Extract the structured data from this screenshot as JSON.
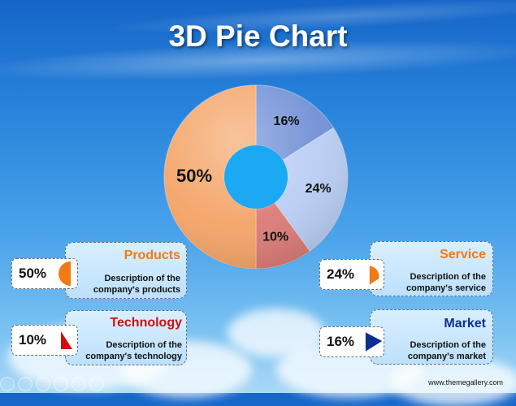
{
  "title": "3D Pie Chart",
  "footer": "www.themegallery.com",
  "chart_data": {
    "type": "pie",
    "title": "3D Pie Chart",
    "donut": true,
    "slices": [
      {
        "name": "Market",
        "value": 16,
        "label": "16%",
        "color": "#6f8fd6"
      },
      {
        "name": "Service",
        "value": 24,
        "label": "24%",
        "color": "#b9cdf4"
      },
      {
        "name": "Technology",
        "value": 10,
        "label": "10%",
        "color": "#db7b76"
      },
      {
        "name": "Products",
        "value": 50,
        "label": "50%",
        "color": "#f4a467"
      }
    ],
    "hole_color": "#1aa9f2"
  },
  "cards": {
    "products": {
      "pct": "50%",
      "title": "Products",
      "desc1": "Description of the",
      "desc2": "company's products",
      "color": "#f07a16"
    },
    "technology": {
      "pct": "10%",
      "title": "Technology",
      "desc1": "Description of the",
      "desc2": "company's technology",
      "color": "#cc1111"
    },
    "service": {
      "pct": "24%",
      "title": "Service",
      "desc1": "Description of the",
      "desc2": "company's service",
      "color": "#f07a16"
    },
    "market": {
      "pct": "16%",
      "title": "Market",
      "desc1": "Description of the",
      "desc2": "company's market",
      "color": "#0d2f8f"
    }
  }
}
